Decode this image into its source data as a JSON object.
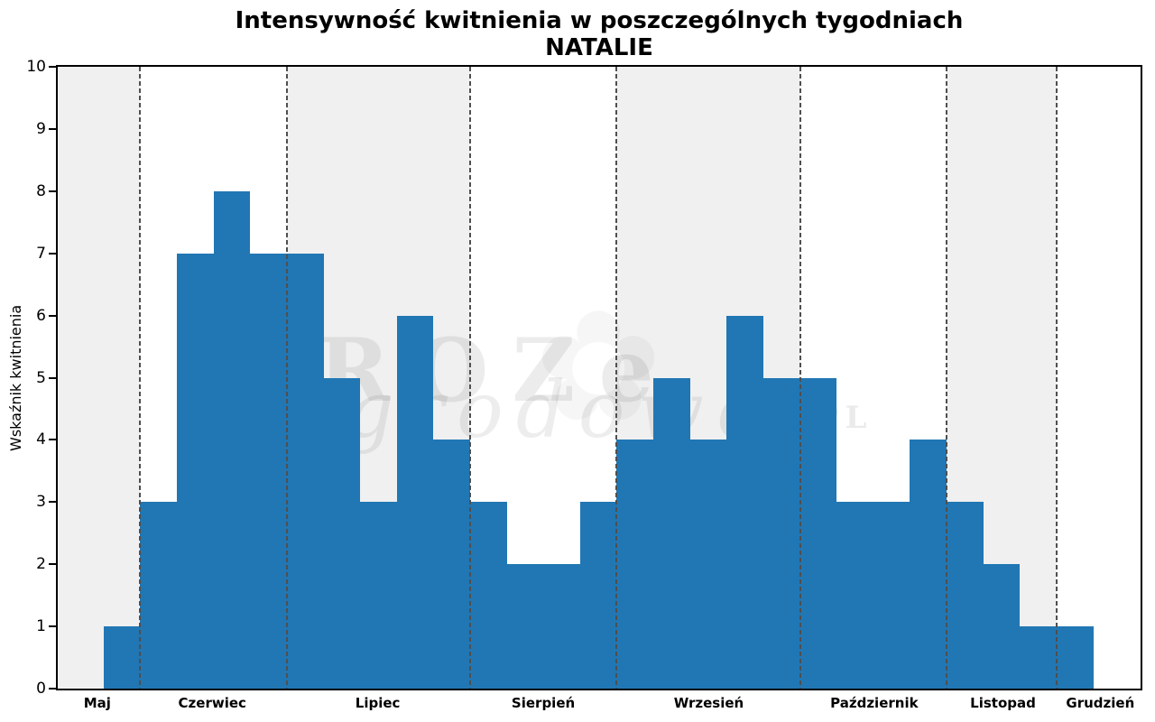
{
  "figure": {
    "title_line1": "Intensywność kwitnienia w poszczególnych tygodniach",
    "title_line2": "NATALIE",
    "y_axis_label": "Wskaźnik kwitnienia"
  },
  "watermark": {
    "word1": "ROZe",
    "word2": "ogrodowe",
    "word3": "PL",
    "flower_glyph": "✿"
  },
  "colors": {
    "bar": "#2177b4",
    "band_gray": "#f0f0f0",
    "band_white": "#ffffff",
    "divider": "#4f4f4f",
    "frame": "#000000",
    "text": "#000000"
  },
  "chart_data": {
    "type": "bar",
    "title": "Intensywność kwitnienia w poszczególnych tygodniach NATALIE",
    "xlabel": "",
    "ylabel": "Wskaźnik kwitnienia",
    "ylim": [
      0,
      10
    ],
    "y_ticks": [
      0,
      1,
      2,
      3,
      4,
      5,
      6,
      7,
      8,
      9,
      10
    ],
    "grid": false,
    "legend": false,
    "x_unit": "week",
    "bar_color": "#2177b4",
    "categories": [
      "Maj",
      "Czerwiec",
      "Lipiec",
      "Sierpień",
      "Wrzesień",
      "Październik",
      "Listopad",
      "Grudzień"
    ],
    "months": [
      {
        "label": "Maj",
        "band": "gray",
        "lead_empty_weeks": 1.25,
        "weekly_values": [
          1
        ]
      },
      {
        "label": "Czerwiec",
        "band": "white",
        "weekly_values": [
          3,
          7,
          8,
          7
        ]
      },
      {
        "label": "Lipiec",
        "band": "gray",
        "weekly_values": [
          7,
          5,
          3,
          6,
          4
        ]
      },
      {
        "label": "Sierpień",
        "band": "white",
        "weekly_values": [
          3,
          2,
          2,
          3
        ]
      },
      {
        "label": "Wrzesień",
        "band": "gray",
        "weekly_values": [
          4,
          5,
          4,
          6,
          5
        ]
      },
      {
        "label": "Październik",
        "band": "white",
        "weekly_values": [
          5,
          3,
          3,
          4
        ]
      },
      {
        "label": "Listopad",
        "band": "gray",
        "weekly_values": [
          3,
          2,
          1
        ]
      },
      {
        "label": "Grudzień",
        "band": "white",
        "trail_empty_weeks": 1.29,
        "weekly_values": [
          1
        ]
      }
    ],
    "all_weekly_values": [
      1,
      3,
      7,
      8,
      7,
      7,
      5,
      3,
      6,
      4,
      3,
      2,
      2,
      3,
      4,
      5,
      4,
      6,
      5,
      5,
      3,
      3,
      4,
      3,
      2,
      1,
      1
    ]
  }
}
